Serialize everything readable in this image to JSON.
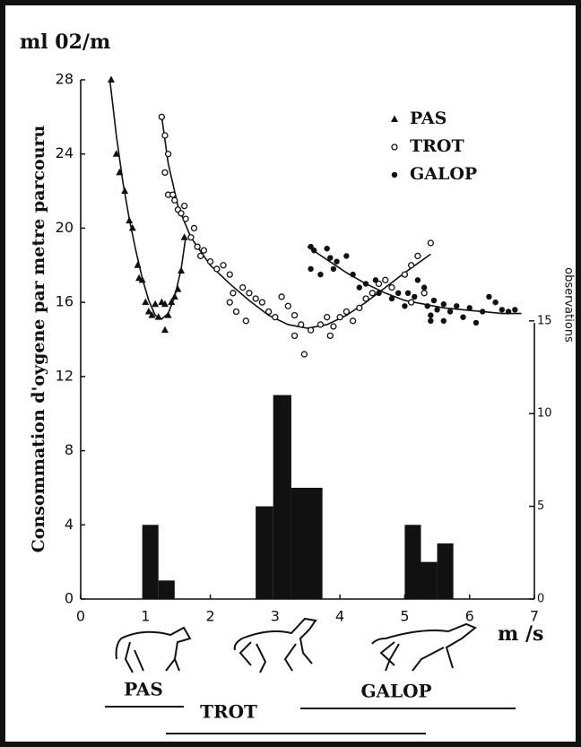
{
  "chart_data": {
    "type": "scatter",
    "title": "ml 02/m",
    "y_label": "Consommation d'oygene par metre parcouru",
    "y2_label": "observations",
    "x_label": "m /s",
    "xlim": [
      0,
      7
    ],
    "xticks": [
      0,
      1,
      2,
      3,
      4,
      5,
      6,
      7
    ],
    "ylim": [
      0,
      28
    ],
    "yticks": [
      0,
      4,
      8,
      12,
      16,
      20,
      24,
      28
    ],
    "y2lim": [
      0,
      28
    ],
    "y2ticks": [
      0,
      5,
      10,
      15
    ],
    "series": [
      {
        "name": "PAS",
        "marker": "triangle",
        "color": "#111",
        "x": [
          0.47,
          0.55,
          0.6,
          0.68,
          0.75,
          0.8,
          0.88,
          0.9,
          0.95,
          1.0,
          1.05,
          1.1,
          1.15,
          1.2,
          1.25,
          1.3,
          1.35,
          1.4,
          1.45,
          1.5,
          1.55,
          1.6,
          1.3
        ],
        "values": [
          28,
          24,
          23,
          22,
          20.4,
          20,
          18,
          17.3,
          17.2,
          16,
          15.5,
          15.3,
          15.9,
          15.2,
          16,
          15.9,
          15.3,
          16,
          16.3,
          16.7,
          17.7,
          19.5,
          14.5
        ]
      },
      {
        "name": "TROT",
        "marker": "open-circle",
        "color": "#111",
        "x": [
          1.25,
          1.3,
          1.35,
          1.3,
          1.35,
          1.42,
          1.45,
          1.5,
          1.55,
          1.6,
          1.62,
          1.7,
          1.75,
          1.8,
          1.85,
          1.9,
          2.0,
          2.1,
          2.2,
          2.3,
          2.35,
          2.5,
          2.6,
          2.7,
          2.3,
          2.4,
          2.55,
          2.8,
          2.9,
          3.0,
          3.1,
          3.2,
          3.3,
          3.3,
          3.4,
          3.45,
          3.55,
          3.7,
          3.8,
          3.85,
          3.9,
          4.0,
          4.1,
          4.2,
          4.3,
          4.4,
          4.5,
          4.6,
          4.7,
          4.8,
          5.0,
          5.1,
          5.2,
          5.4,
          5.3,
          5.1
        ],
        "values": [
          26,
          25,
          24,
          23,
          21.8,
          21.8,
          21.5,
          21,
          20.8,
          21.2,
          20.5,
          19.5,
          20,
          19,
          18.5,
          18.8,
          18.2,
          17.8,
          18,
          17.5,
          16.5,
          16.8,
          16.5,
          16.2,
          16,
          15.5,
          15,
          16,
          15.5,
          15.2,
          16.3,
          15.8,
          15.3,
          14.2,
          14.8,
          13.2,
          14.5,
          14.8,
          15.2,
          14.2,
          14.7,
          15.2,
          15.5,
          15,
          15.7,
          16.2,
          16.5,
          17,
          17.2,
          16.8,
          17.5,
          18,
          18.5,
          19.2,
          16.5,
          16
        ]
      },
      {
        "name": "GALOP",
        "marker": "circle",
        "color": "#111",
        "x": [
          3.55,
          3.6,
          3.8,
          3.85,
          3.9,
          3.55,
          3.7,
          3.95,
          4.1,
          4.2,
          4.3,
          4.4,
          4.55,
          4.6,
          4.8,
          4.9,
          5.0,
          5.05,
          5.15,
          5.2,
          5.3,
          5.35,
          5.4,
          5.45,
          5.5,
          5.6,
          5.7,
          5.8,
          5.9,
          6.0,
          6.1,
          6.2,
          6.3,
          6.4,
          6.5,
          6.6,
          6.7,
          5.4,
          5.6
        ],
        "values": [
          19,
          18.8,
          18.9,
          18.4,
          17.8,
          17.8,
          17.5,
          18.2,
          18.5,
          17.5,
          16.8,
          17,
          17.2,
          16.5,
          16.2,
          16.5,
          15.8,
          16.5,
          16.3,
          17.2,
          16.8,
          15.8,
          15.3,
          16.1,
          15.6,
          15.9,
          15.5,
          15.8,
          15.2,
          15.7,
          14.9,
          15.5,
          16.3,
          16,
          15.6,
          15.5,
          15.6,
          15,
          15
        ]
      }
    ],
    "curves": [
      {
        "x": [
          0.45,
          0.55,
          0.65,
          0.75,
          0.85,
          0.95,
          1.05,
          1.15,
          1.25,
          1.35,
          1.45,
          1.55,
          1.62
        ],
        "values": [
          28,
          25,
          22.5,
          20.5,
          18.8,
          17.3,
          16.1,
          15.3,
          15.1,
          15.4,
          16.3,
          17.8,
          19.5
        ]
      },
      {
        "x": [
          1.25,
          1.35,
          1.5,
          1.7,
          2.0,
          2.3,
          2.6,
          2.9,
          3.2,
          3.5,
          3.8,
          4.1,
          4.4,
          4.7,
          5.0,
          5.4
        ],
        "values": [
          26,
          23.5,
          21.2,
          19.5,
          18,
          17,
          16.1,
          15.3,
          14.8,
          14.6,
          14.8,
          15.3,
          16,
          16.8,
          17.6,
          18.6
        ]
      },
      {
        "x": [
          3.5,
          3.8,
          4.1,
          4.4,
          4.7,
          5.0,
          5.3,
          5.6,
          5.9,
          6.2,
          6.5,
          6.8
        ],
        "values": [
          19,
          18.3,
          17.6,
          17,
          16.5,
          16.1,
          15.9,
          15.7,
          15.6,
          15.5,
          15.4,
          15.4
        ]
      }
    ],
    "histogram": {
      "axis": "y2",
      "color": "#111",
      "bar_left": [
        0.95,
        1.2,
        2.7,
        2.97,
        3.25,
        5.0,
        5.25,
        5.5
      ],
      "bar_right": [
        1.2,
        1.45,
        2.97,
        3.25,
        3.73,
        5.25,
        5.5,
        5.75
      ],
      "values": [
        4,
        1,
        5,
        11,
        6,
        4,
        2,
        3
      ]
    }
  },
  "footer": {
    "gaits": [
      "PAS",
      "TROT",
      "GALOP"
    ]
  }
}
